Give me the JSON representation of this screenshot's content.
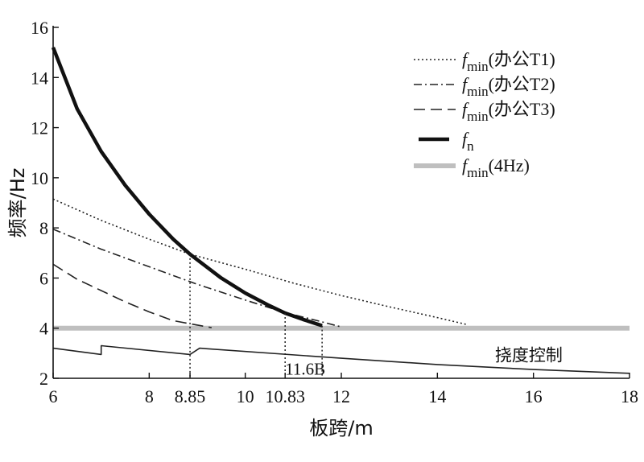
{
  "chart_data": {
    "type": "line",
    "xlabel": "板跨/m",
    "ylabel": "频率/Hz",
    "xlim": [
      6,
      18
    ],
    "ylim": [
      2,
      16
    ],
    "x_ticks": [
      "6",
      "8",
      "8.85",
      "10",
      "10.83",
      "12",
      "14",
      "16",
      "18"
    ],
    "x_tick_values": [
      6,
      8,
      8.85,
      10,
      10.83,
      12,
      14,
      16,
      18
    ],
    "y_ticks": [
      2,
      4,
      6,
      8,
      10,
      12,
      14,
      16
    ],
    "grid": false,
    "legend_position": "top-right",
    "series": [
      {
        "key": "t1",
        "legend_main": "f",
        "legend_sub": "min",
        "legend_paren": "(办公T1)",
        "color": "#222222",
        "style": "dotted",
        "x": [
          6,
          7,
          8,
          8.85,
          10,
          11,
          12,
          13,
          14,
          14.6
        ],
        "y": [
          9.15,
          8.3,
          7.55,
          6.95,
          6.35,
          5.8,
          5.3,
          4.85,
          4.42,
          4.15
        ]
      },
      {
        "key": "t2",
        "legend_main": "f",
        "legend_sub": "min",
        "legend_paren": "(办公T2)",
        "color": "#222222",
        "style": "dashdot",
        "x": [
          6,
          7,
          8,
          9,
          10,
          10.83,
          11.5,
          12
        ],
        "y": [
          7.95,
          7.15,
          6.45,
          5.75,
          5.12,
          4.62,
          4.3,
          4.05
        ]
      },
      {
        "key": "t3",
        "legend_main": "f",
        "legend_sub": "min",
        "legend_paren": "(办公T3)",
        "color": "#222222",
        "style": "dashed",
        "x": [
          6,
          6.5,
          7,
          7.5,
          8,
          8.5,
          9.3
        ],
        "y": [
          6.55,
          5.95,
          5.5,
          5.05,
          4.65,
          4.3,
          4.02
        ]
      },
      {
        "key": "fn",
        "legend_main": "f",
        "legend_sub": "n",
        "legend_paren": "",
        "color": "#111111",
        "style": "thick",
        "x": [
          6,
          6.5,
          7,
          7.5,
          8,
          8.5,
          8.85,
          9.5,
          10,
          10.5,
          10.83,
          11.2,
          11.6
        ],
        "y": [
          15.2,
          12.75,
          11.05,
          9.7,
          8.55,
          7.55,
          6.95,
          6.0,
          5.4,
          4.9,
          4.6,
          4.35,
          4.1
        ]
      },
      {
        "key": "hz4",
        "legend_main": "f",
        "legend_sub": "min",
        "legend_paren": "(4Hz)",
        "color": "#bfbfbf",
        "style": "gray",
        "x": [
          6,
          18
        ],
        "y": [
          4,
          4
        ]
      },
      {
        "key": "deflection",
        "legend_main": "",
        "legend_sub": "",
        "legend_paren": "",
        "color": "#222222",
        "style": "thin",
        "x": [
          6,
          7,
          7,
          8.85,
          8.85,
          9.05,
          9.05,
          12,
          14,
          16,
          18
        ],
        "y": [
          3.2,
          2.95,
          3.3,
          2.95,
          2.95,
          3.2,
          3.2,
          2.8,
          2.55,
          2.35,
          2.2
        ]
      }
    ],
    "reference_lines": [
      {
        "x": 8.85,
        "y": 6.95
      },
      {
        "x": 10.83,
        "y": 4.6
      },
      {
        "x": 11.6,
        "y": 4.1
      }
    ],
    "annotations": [
      {
        "text": "11.6B",
        "x": 10.83,
        "y": 2.4
      },
      {
        "text": "挠度控制",
        "x": 15.2,
        "y": 2.95
      }
    ]
  }
}
